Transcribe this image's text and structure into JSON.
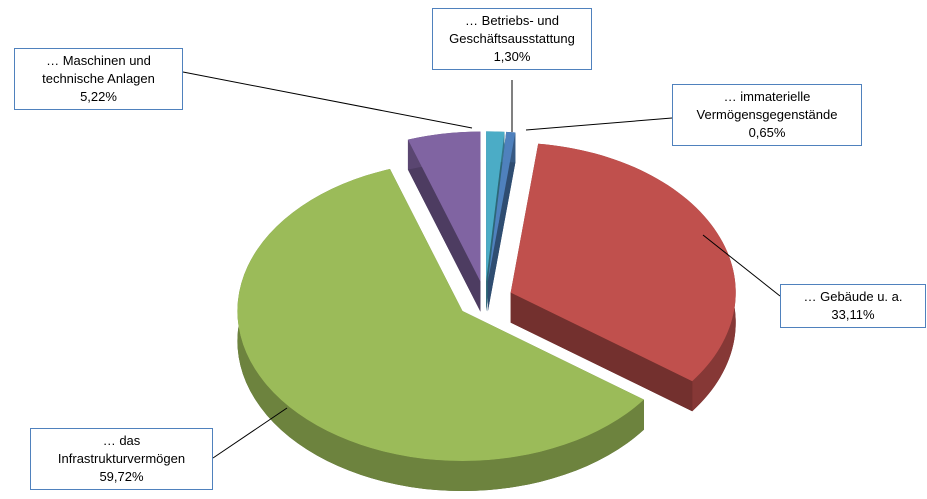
{
  "chart_data": {
    "type": "pie",
    "categories": [
      "… Betriebs- und\nGeschäftsausstattung",
      "… immaterielle\nVermögensgegenstände",
      "… Gebäude u. a.",
      "… das\nInfrastrukturvermögen",
      "… Maschinen und\ntechnische Anlagen"
    ],
    "values": [
      1.3,
      0.65,
      33.11,
      59.72,
      5.22
    ],
    "value_labels": [
      "1,30%",
      "0,65%",
      "33,11%",
      "59,72%",
      "5,22%"
    ],
    "colors": [
      "#4bacc6",
      "#4f81bd",
      "#c0504d",
      "#9bbb59",
      "#8064a2"
    ]
  }
}
